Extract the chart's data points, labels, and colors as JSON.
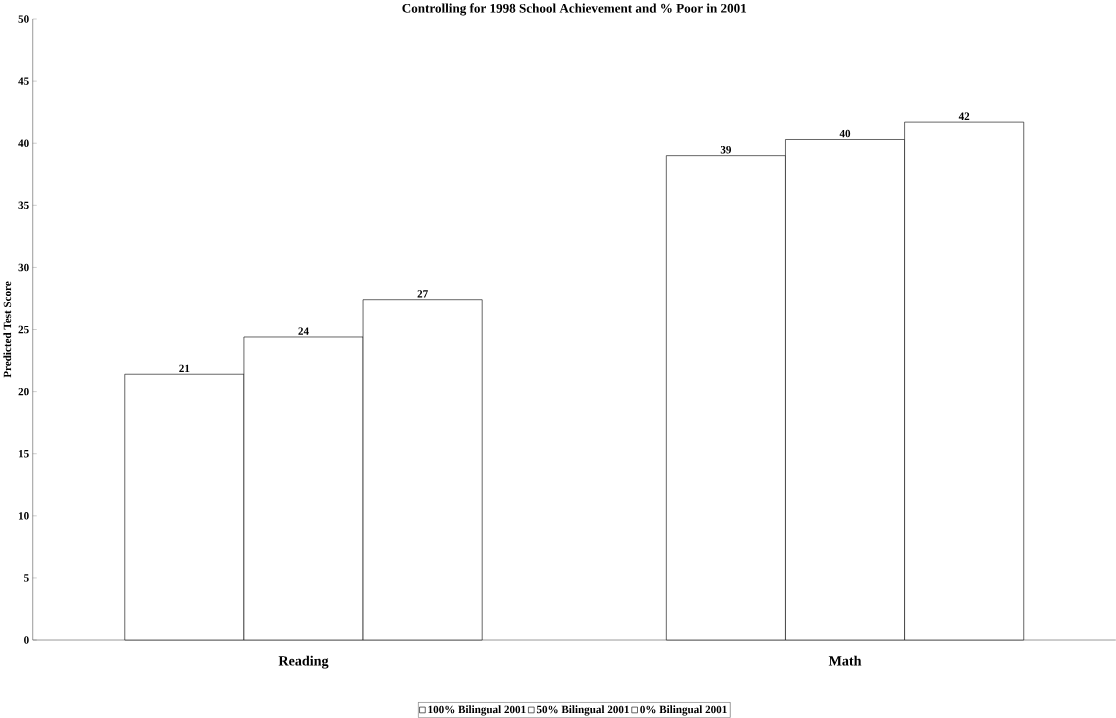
{
  "chart_data": {
    "type": "bar",
    "title": "Controlling for 1998 School Achievement and % Poor in 2001",
    "ylabel": "Predicted Test Score",
    "categories": [
      "Reading",
      "Math"
    ],
    "series": [
      {
        "name": "100% Bilingual 2001",
        "color": "#ffffff",
        "values": [
          21.4,
          39.0
        ],
        "value_labels": [
          "21",
          "39"
        ]
      },
      {
        "name": "50% Bilingual 2001",
        "color": "#ffffff",
        "values": [
          24.4,
          40.3
        ],
        "value_labels": [
          "24",
          "40"
        ]
      },
      {
        "name": "0% Bilingual 2001",
        "color": "#ffffff",
        "values": [
          27.4,
          41.7
        ],
        "value_labels": [
          "27",
          "42"
        ]
      }
    ],
    "ylim": [
      0,
      50
    ],
    "yticks": [
      0,
      5,
      10,
      15,
      20,
      25,
      30,
      35,
      40,
      45,
      50
    ],
    "grid": false,
    "legend": "bottom"
  }
}
